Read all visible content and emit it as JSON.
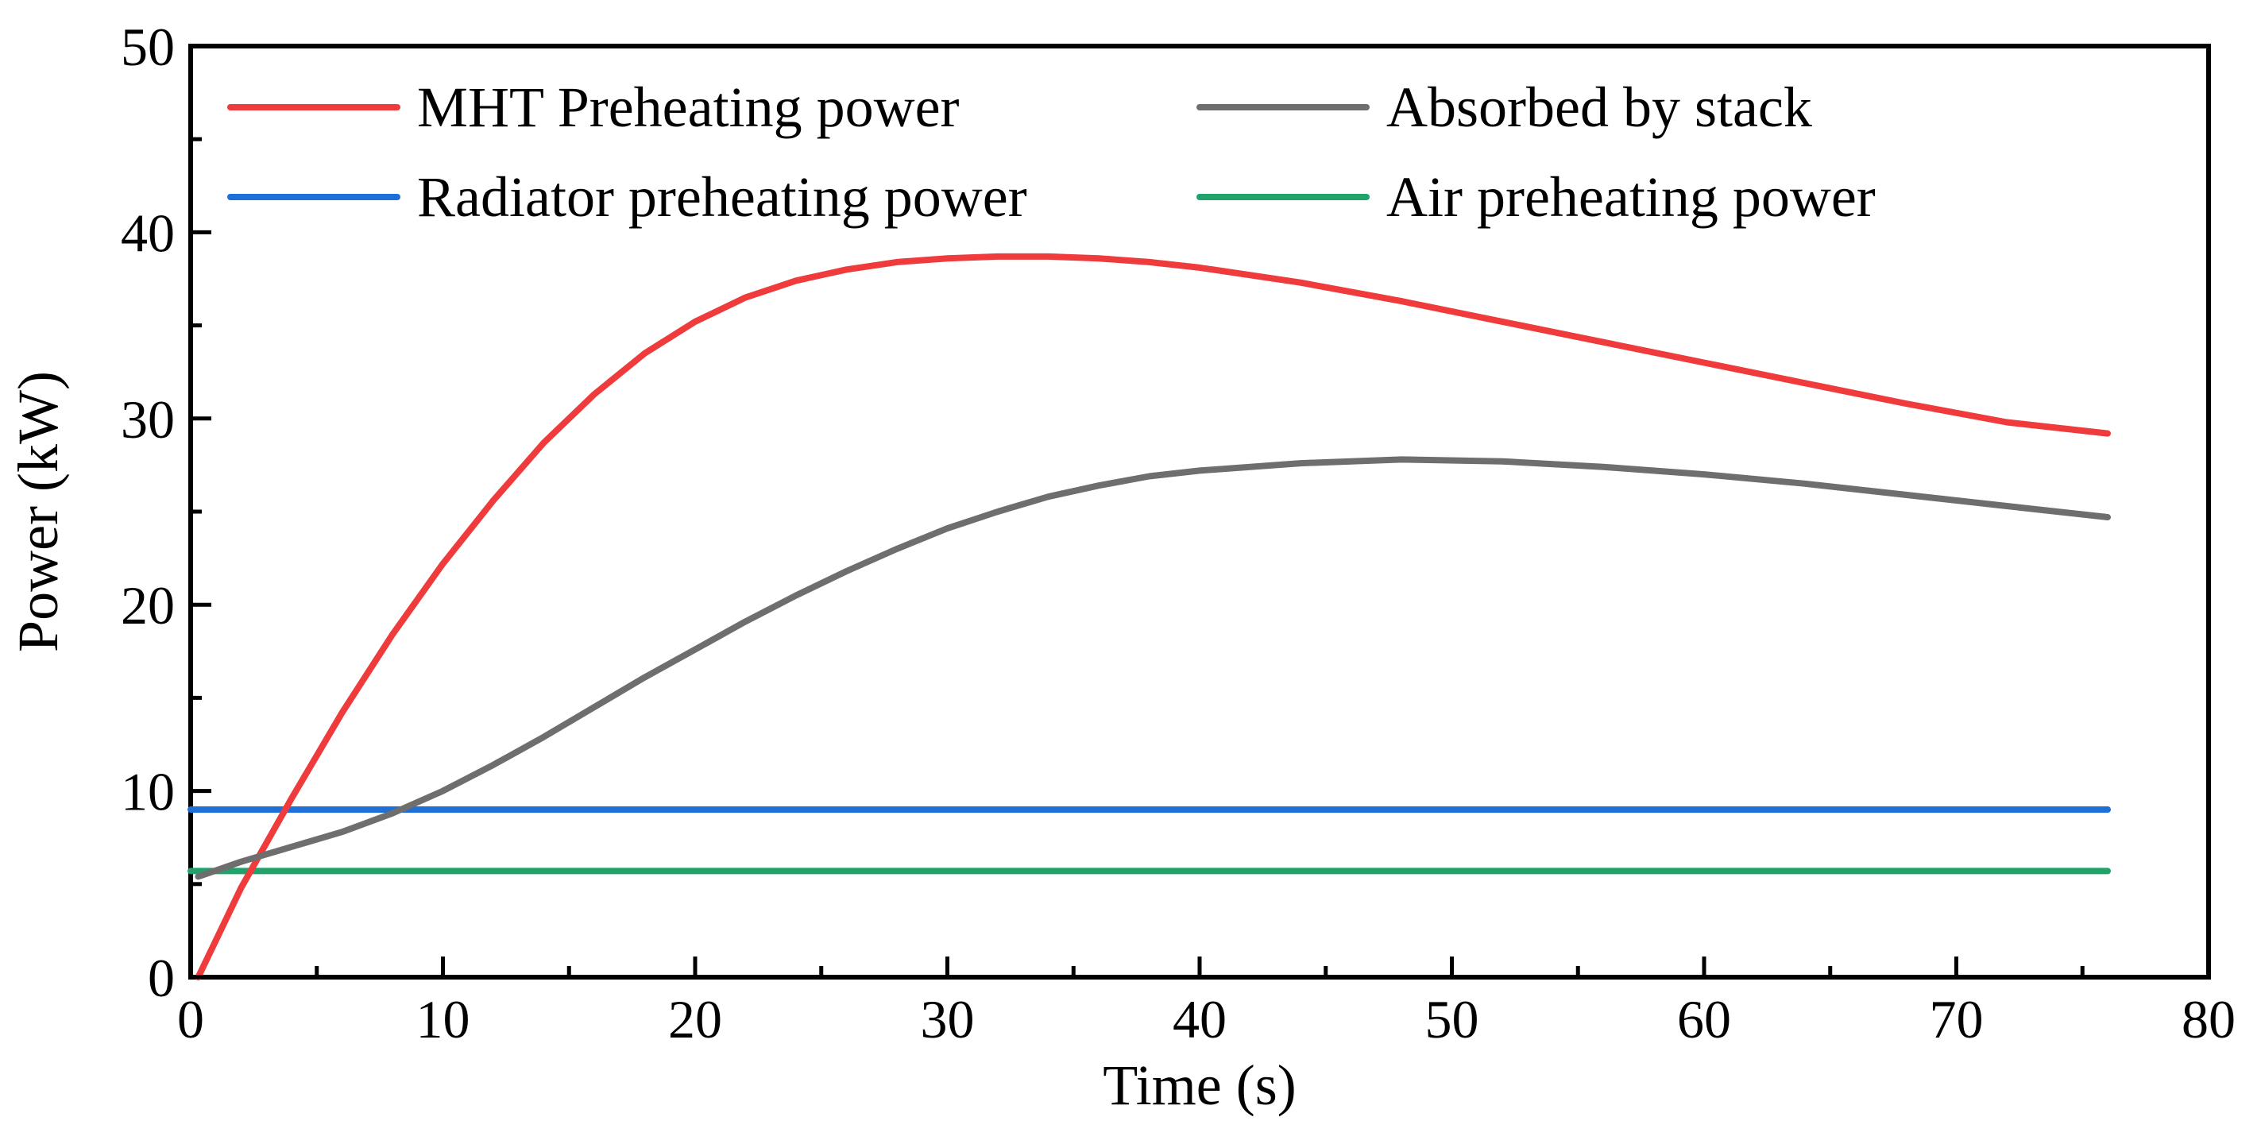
{
  "chart_data": {
    "type": "line",
    "title": "",
    "xlabel": "Time (s)",
    "ylabel": "Power (kW)",
    "xlim": [
      0,
      80
    ],
    "ylim": [
      0,
      50
    ],
    "xticks": [
      0,
      10,
      20,
      30,
      40,
      50,
      60,
      70,
      80
    ],
    "yticks": [
      0,
      10,
      20,
      30,
      40,
      50
    ],
    "grid": false,
    "legend_position": "top",
    "series": [
      {
        "name": "MHT Preheating power",
        "color": "#ef3b3b",
        "x": [
          0.3,
          2,
          4,
          6,
          8,
          10,
          12,
          14,
          16,
          18,
          20,
          22,
          24,
          26,
          28,
          30,
          32,
          34,
          36,
          38,
          40,
          44,
          48,
          52,
          56,
          60,
          64,
          68,
          72,
          76
        ],
        "y": [
          0,
          4.8,
          9.6,
          14.2,
          18.4,
          22.2,
          25.6,
          28.7,
          31.3,
          33.5,
          35.2,
          36.5,
          37.4,
          38.0,
          38.4,
          38.6,
          38.7,
          38.7,
          38.6,
          38.4,
          38.1,
          37.3,
          36.3,
          35.2,
          34.1,
          33.0,
          31.9,
          30.8,
          29.8,
          29.2
        ]
      },
      {
        "name": "Absorbed by stack",
        "color": "#6e6e6e",
        "x": [
          0.3,
          2,
          4,
          6,
          8,
          10,
          12,
          14,
          16,
          18,
          20,
          22,
          24,
          26,
          28,
          30,
          32,
          34,
          36,
          38,
          40,
          44,
          48,
          52,
          56,
          60,
          64,
          68,
          72,
          76
        ],
        "y": [
          5.4,
          6.2,
          7.0,
          7.8,
          8.8,
          10.0,
          11.4,
          12.9,
          14.5,
          16.1,
          17.6,
          19.1,
          20.5,
          21.8,
          23.0,
          24.1,
          25.0,
          25.8,
          26.4,
          26.9,
          27.2,
          27.6,
          27.8,
          27.7,
          27.4,
          27.0,
          26.5,
          25.9,
          25.3,
          24.7
        ]
      },
      {
        "name": "Radiator preheating power",
        "color": "#1f6fd8",
        "x": [
          0,
          76
        ],
        "y": [
          9.0,
          9.0
        ]
      },
      {
        "name": "Air preheating power",
        "color": "#1fa36a",
        "x": [
          0,
          76
        ],
        "y": [
          5.7,
          5.7
        ]
      }
    ]
  }
}
